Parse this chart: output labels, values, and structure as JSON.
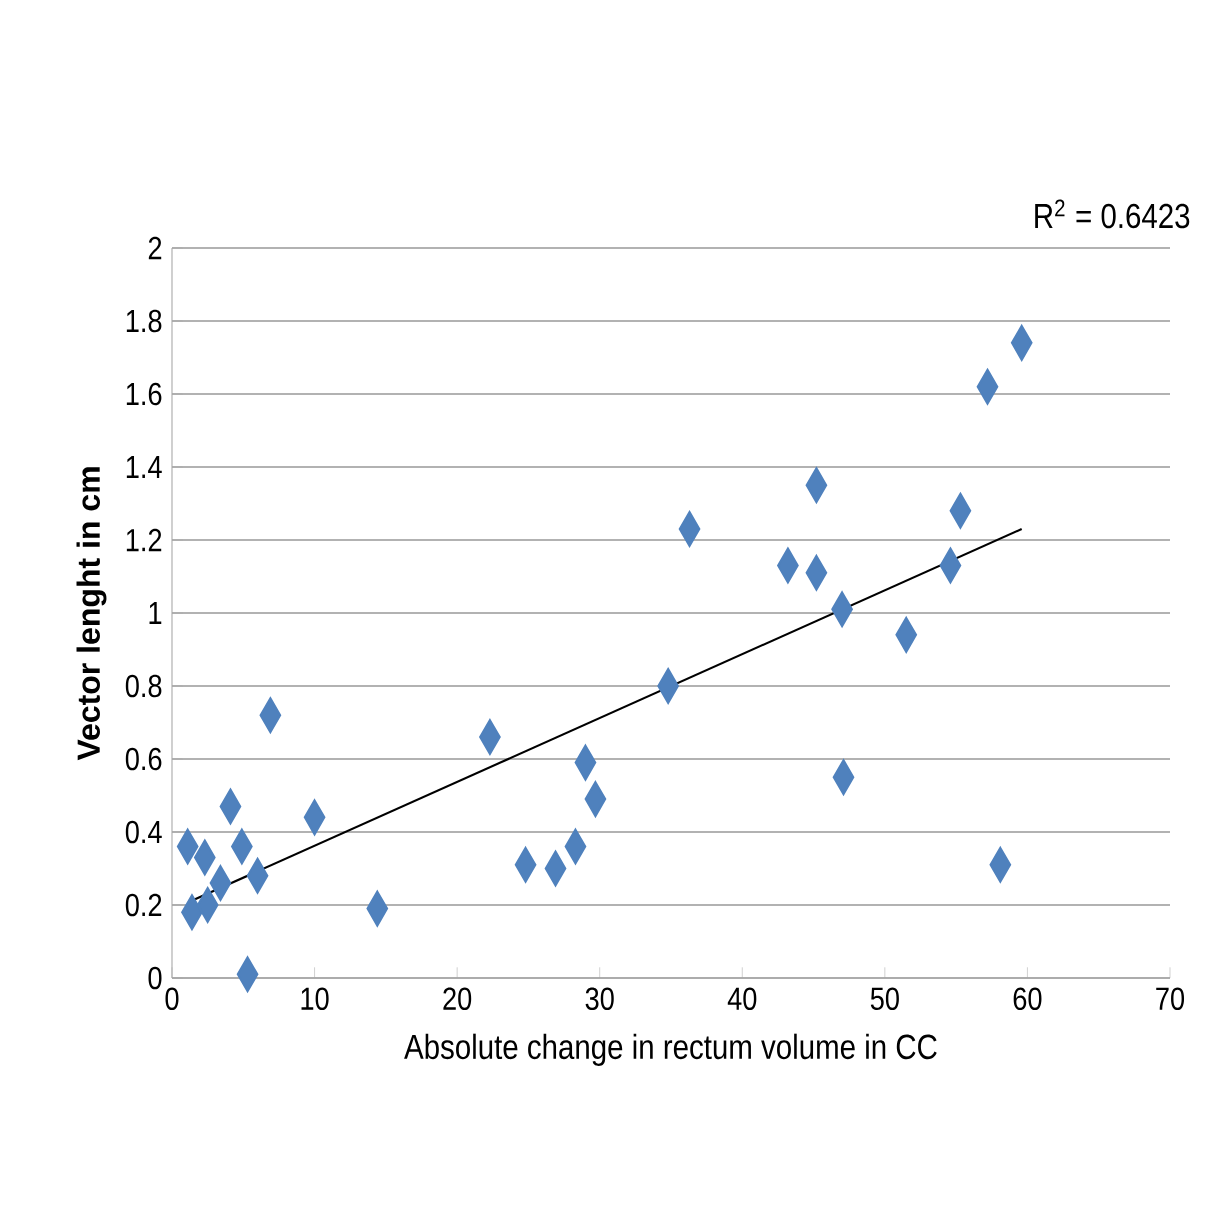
{
  "chart_data": {
    "type": "scatter",
    "xlabel": "Absolute change in rectum volume in CC",
    "ylabel": "Vector lenght in cm",
    "annotations": [
      "R$^{2}$ = 0.6423"
    ],
    "xlim": [
      0,
      70
    ],
    "ylim": [
      0,
      2
    ],
    "xticks": [
      0,
      10,
      20,
      30,
      40,
      50,
      60,
      70
    ],
    "yticks": [
      0,
      0.2,
      0.4,
      0.6,
      0.8,
      1,
      1.2,
      1.4,
      1.6,
      1.8,
      2
    ],
    "grid": "y",
    "marker": "diamond",
    "series": [
      {
        "color": "#4f81bd",
        "x": [
          1.1,
          1.4,
          2.3,
          2.5,
          3.4,
          4.1,
          4.9,
          5.3,
          6.0,
          6.9,
          10.0,
          14.4,
          22.3,
          24.8,
          26.9,
          28.3,
          29.0,
          29.7,
          34.8,
          36.3,
          43.2,
          45.2,
          45.2,
          47.0,
          47.1,
          51.5,
          54.6,
          55.3,
          57.2,
          58.1,
          59.6
        ],
        "values": [
          0.36,
          0.18,
          0.33,
          0.2,
          0.26,
          0.47,
          0.36,
          0.01,
          0.28,
          0.72,
          0.44,
          0.19,
          0.66,
          0.31,
          0.3,
          0.36,
          0.59,
          0.49,
          0.8,
          1.23,
          1.13,
          1.35,
          1.11,
          1.01,
          0.55,
          0.94,
          1.13,
          1.28,
          1.62,
          0.31,
          1.74
        ]
      },
      {
        "type": "line",
        "color": "#000000",
        "marker": "none",
        "x": [
          1.3,
          59.6
        ],
        "values": [
          0.21,
          1.23
        ]
      }
    ]
  }
}
